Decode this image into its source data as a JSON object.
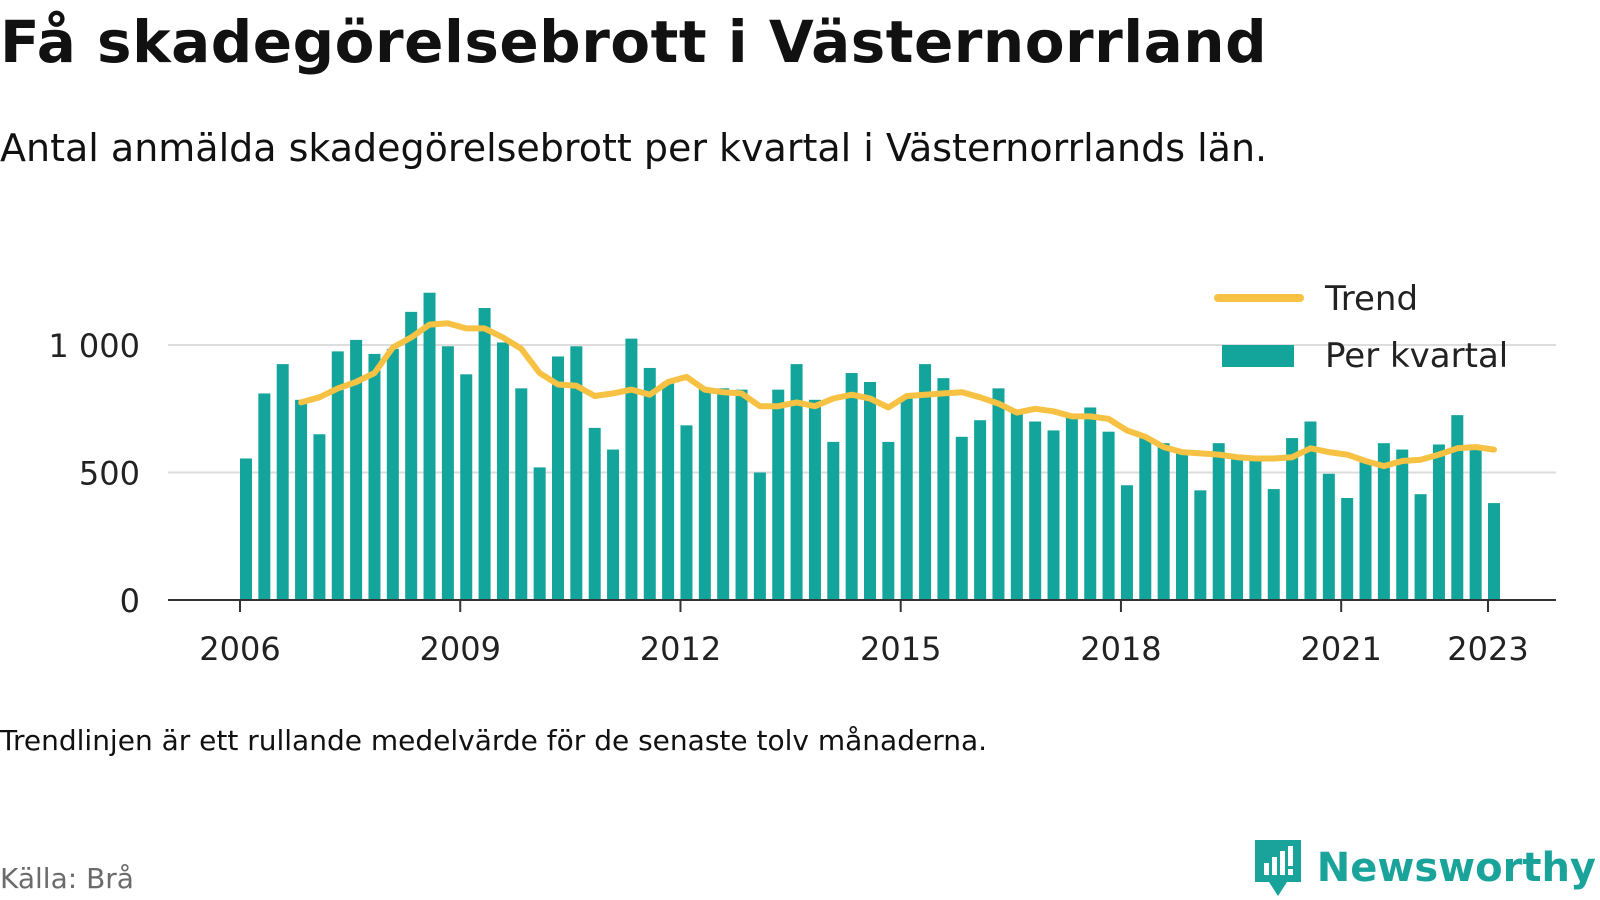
{
  "header": {
    "title": "Få skadegörelsebrott i Västernorrland",
    "subtitle": "Antal anmälda skadegörelsebrott per kvartal i Västernorrlands län."
  },
  "footer": {
    "note": "Trendlinjen är ett rullande medelvärde för de senaste tolv månaderna.",
    "source": "Källa: Brå",
    "brand": "Newsworthy"
  },
  "colors": {
    "bars": "#13a59b",
    "trend": "#f7c244",
    "grid": "#dddddd",
    "axis": "#333333",
    "brand": "#1aa39a"
  },
  "chart_data": {
    "type": "bar",
    "x_tick_labels": [
      "2006",
      "2009",
      "2012",
      "2015",
      "2018",
      "2021",
      "2023"
    ],
    "x_ticks": [
      2006,
      2009,
      2012,
      2015,
      2018,
      2021,
      2023
    ],
    "y_tick_labels": [
      "0",
      "500",
      "1 000"
    ],
    "y_ticks": [
      0,
      500,
      1000
    ],
    "ylim": [
      0,
      1300
    ],
    "grid": true,
    "legend_position": "top-right",
    "series": [
      {
        "name": "Trend",
        "kind": "line",
        "x": [
          "2006Q4",
          "2007Q1",
          "2007Q2",
          "2007Q3",
          "2007Q4",
          "2008Q1",
          "2008Q2",
          "2008Q3",
          "2008Q4",
          "2009Q1",
          "2009Q2",
          "2009Q3",
          "2009Q4",
          "2010Q1",
          "2010Q2",
          "2010Q3",
          "2010Q4",
          "2011Q1",
          "2011Q2",
          "2011Q3",
          "2011Q4",
          "2012Q1",
          "2012Q2",
          "2012Q3",
          "2012Q4",
          "2013Q1",
          "2013Q2",
          "2013Q3",
          "2013Q4",
          "2014Q1",
          "2014Q2",
          "2014Q3",
          "2014Q4",
          "2015Q1",
          "2015Q2",
          "2015Q3",
          "2015Q4",
          "2016Q1",
          "2016Q2",
          "2016Q3",
          "2016Q4",
          "2017Q1",
          "2017Q2",
          "2017Q3",
          "2017Q4",
          "2018Q1",
          "2018Q2",
          "2018Q3",
          "2018Q4",
          "2019Q1",
          "2019Q2",
          "2019Q3",
          "2019Q4",
          "2020Q1",
          "2020Q2",
          "2020Q3",
          "2020Q4",
          "2021Q1",
          "2021Q2",
          "2021Q3",
          "2021Q4",
          "2022Q1",
          "2022Q2",
          "2022Q3",
          "2022Q4",
          "2023Q1"
        ],
        "values": [
          775,
          795,
          830,
          855,
          890,
          990,
          1030,
          1080,
          1085,
          1065,
          1065,
          1030,
          985,
          890,
          845,
          840,
          800,
          810,
          825,
          805,
          855,
          875,
          825,
          815,
          810,
          760,
          760,
          775,
          760,
          790,
          805,
          790,
          755,
          800,
          805,
          810,
          815,
          795,
          770,
          735,
          750,
          740,
          720,
          720,
          710,
          665,
          640,
          600,
          580,
          575,
          570,
          560,
          555,
          555,
          560,
          595,
          580,
          570,
          545,
          525,
          545,
          550,
          570,
          595,
          600,
          590
        ]
      },
      {
        "name": "Per kvartal",
        "kind": "bar",
        "x": [
          "2006Q1",
          "2006Q2",
          "2006Q3",
          "2006Q4",
          "2007Q1",
          "2007Q2",
          "2007Q3",
          "2007Q4",
          "2008Q1",
          "2008Q2",
          "2008Q3",
          "2008Q4",
          "2009Q1",
          "2009Q2",
          "2009Q3",
          "2009Q4",
          "2010Q1",
          "2010Q2",
          "2010Q3",
          "2010Q4",
          "2011Q1",
          "2011Q2",
          "2011Q3",
          "2011Q4",
          "2012Q1",
          "2012Q2",
          "2012Q3",
          "2012Q4",
          "2013Q1",
          "2013Q2",
          "2013Q3",
          "2013Q4",
          "2014Q1",
          "2014Q2",
          "2014Q3",
          "2014Q4",
          "2015Q1",
          "2015Q2",
          "2015Q3",
          "2015Q4",
          "2016Q1",
          "2016Q2",
          "2016Q3",
          "2016Q4",
          "2017Q1",
          "2017Q2",
          "2017Q3",
          "2017Q4",
          "2018Q1",
          "2018Q2",
          "2018Q3",
          "2018Q4",
          "2019Q1",
          "2019Q2",
          "2019Q3",
          "2019Q4",
          "2020Q1",
          "2020Q2",
          "2020Q3",
          "2020Q4",
          "2021Q1",
          "2021Q2",
          "2021Q3",
          "2021Q4",
          "2022Q1",
          "2022Q2",
          "2022Q3",
          "2022Q4",
          "2023Q1"
        ],
        "values": [
          555,
          810,
          925,
          785,
          650,
          975,
          1020,
          965,
          985,
          1130,
          1205,
          995,
          885,
          1145,
          1010,
          830,
          520,
          955,
          995,
          675,
          590,
          1025,
          910,
          855,
          685,
          830,
          830,
          825,
          500,
          825,
          925,
          785,
          620,
          890,
          855,
          620,
          790,
          925,
          870,
          640,
          705,
          830,
          735,
          700,
          665,
          720,
          755,
          660,
          450,
          635,
          615,
          580,
          430,
          615,
          570,
          565,
          435,
          635,
          700,
          495,
          400,
          550,
          615,
          590,
          415,
          610,
          725,
          595,
          380
        ]
      }
    ]
  }
}
